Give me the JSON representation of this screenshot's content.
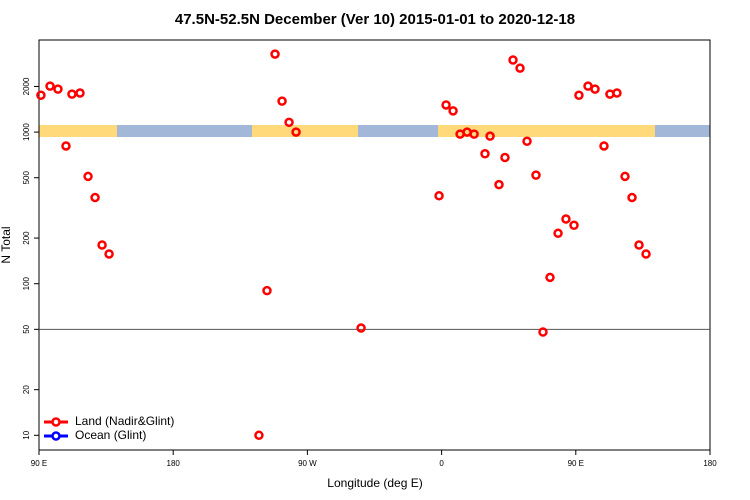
{
  "chart_data": {
    "type": "scatter",
    "title": "47.5N-52.5N December (Ver 10)   2015-01-01 to 2020-12-18",
    "xlabel": "Longitude (deg E)",
    "ylabel": "N Total",
    "xlim": [
      90,
      540
    ],
    "xticks": [
      {
        "value": 90,
        "label": "90 E"
      },
      180,
      {
        "value": 270,
        "label": "90 W"
      },
      {
        "value": 360,
        "label": "0"
      },
      {
        "value": 450,
        "label": "90 E"
      },
      {
        "value": 540,
        "label": "180"
      }
    ],
    "ylim": [
      8,
      4050
    ],
    "log_y": true,
    "yticks": [
      10,
      20,
      50,
      100,
      200,
      500,
      1000,
      2000
    ],
    "hline": 50,
    "legend": "bottom-left",
    "series": [
      {
        "name": "Land (Nadir&Glint)",
        "color": "#ff0000",
        "x": [
          91.3,
          97.4,
          102.7,
          108.1,
          112.1,
          117.5,
          122.9,
          127.6,
          132.3,
          137.0,
          237.5,
          242.9,
          248.3,
          253.0,
          257.7,
          262.4,
          306.0,
          358.3,
          363.0,
          367.7,
          372.4,
          377.1,
          381.8,
          389.1,
          392.5,
          398.5,
          402.5,
          407.9,
          412.6,
          417.3,
          423.3,
          428.0,
          432.7,
          438.1,
          443.4,
          448.8,
          452.1,
          458.2,
          462.9,
          468.9,
          472.9,
          477.6,
          483.0,
          487.7,
          492.4,
          497.1
        ],
        "values": [
          1750,
          2010,
          1920,
          810,
          1780,
          1810,
          510,
          370,
          180,
          157,
          10,
          90,
          3270,
          1600,
          1160,
          1000,
          51,
          380,
          1510,
          1380,
          970,
          1000,
          970,
          720,
          940,
          450,
          680,
          2990,
          2640,
          870,
          520,
          48,
          110,
          215,
          267,
          243,
          1750,
          2010,
          1920,
          810,
          1780,
          1810,
          510,
          370,
          180,
          157
        ]
      },
      {
        "name": "Ocean (Glint)",
        "color": "#0000ff",
        "x": [],
        "values": []
      }
    ]
  }
}
